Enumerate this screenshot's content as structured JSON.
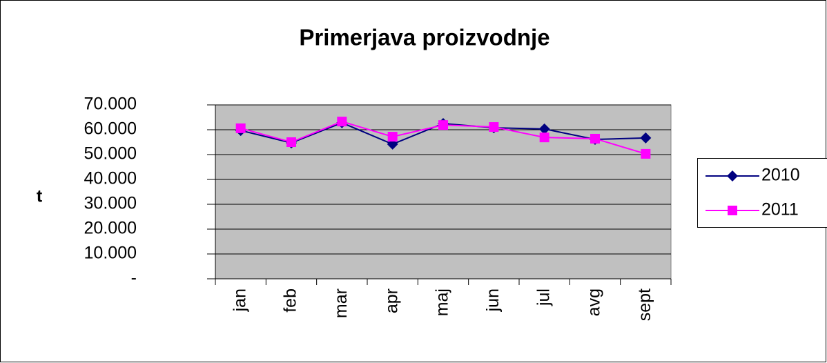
{
  "chart_data": {
    "type": "line",
    "title": "Primerjava proizvodnje",
    "y_label": "t",
    "categories": [
      "jan",
      "feb",
      "mar",
      "apr",
      "maj",
      "jun",
      "jul",
      "avg",
      "sept"
    ],
    "series": [
      {
        "name": "2010",
        "color": "#000080",
        "marker": "diamond",
        "values": [
          59700,
          54700,
          62800,
          54200,
          62500,
          60800,
          60300,
          56100,
          56700
        ]
      },
      {
        "name": "2011",
        "color": "#ff00ff",
        "marker": "square",
        "values": [
          60600,
          55000,
          63300,
          57200,
          61900,
          61100,
          56900,
          56400,
          50300
        ]
      }
    ],
    "ylim": [
      0,
      70000
    ],
    "yticks": [
      {
        "value": 0,
        "label": "-"
      },
      {
        "value": 10000,
        "label": "10.000"
      },
      {
        "value": 20000,
        "label": "20.000"
      },
      {
        "value": 30000,
        "label": "30.000"
      },
      {
        "value": 40000,
        "label": "40.000"
      },
      {
        "value": 50000,
        "label": "50.000"
      },
      {
        "value": 60000,
        "label": "60.000"
      },
      {
        "value": 70000,
        "label": "70.000"
      }
    ],
    "grid": true,
    "plot_background": "#c0c0c0",
    "legend": "right"
  }
}
